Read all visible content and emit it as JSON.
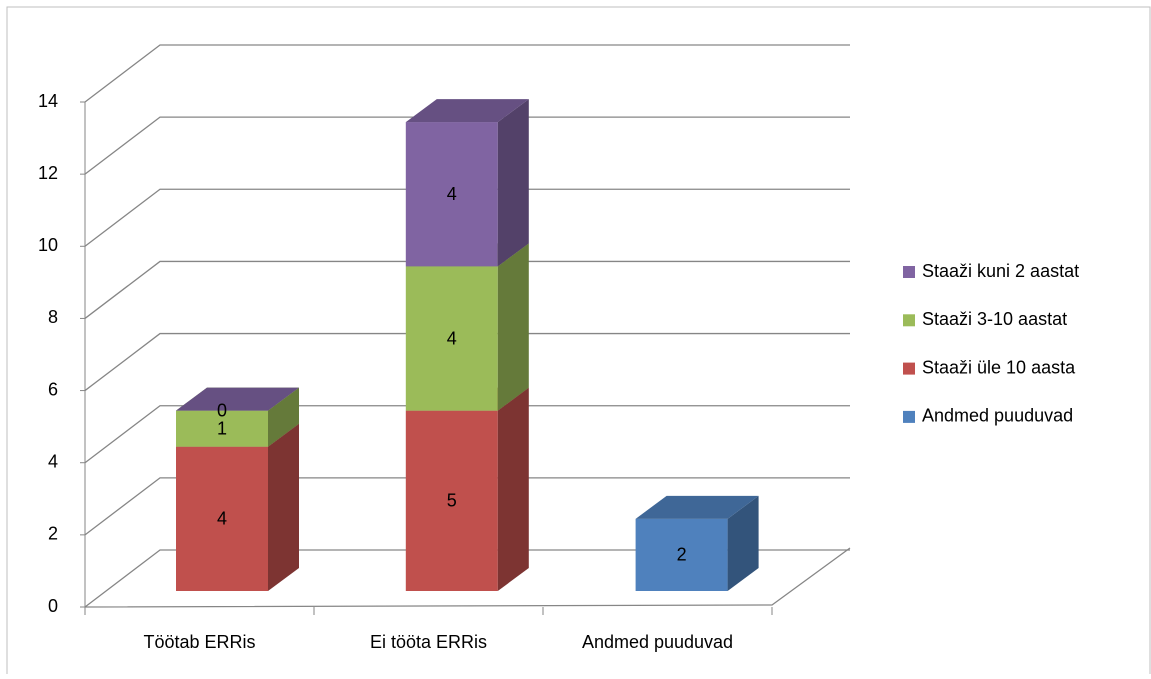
{
  "chart_data": {
    "type": "bar3d_stacked",
    "categories": [
      "Töötab ERRis",
      "Ei tööta ERRis",
      "Andmed puuduvad"
    ],
    "series": [
      {
        "name": "Andmed puuduvad",
        "color": "#4f81bd",
        "values": [
          null,
          null,
          2
        ]
      },
      {
        "name": "Staaži üle 10 aasta",
        "color": "#c0504d",
        "values": [
          4,
          5,
          null
        ]
      },
      {
        "name": "Staaži 3-10 aastat",
        "color": "#9bbb59",
        "values": [
          1,
          4,
          null
        ]
      },
      {
        "name": "Staaži kuni 2 aastat",
        "color": "#8064a2",
        "values": [
          0,
          4,
          null
        ]
      }
    ],
    "ylim": [
      0,
      14
    ],
    "yticks": [
      0,
      2,
      4,
      6,
      8,
      10,
      12,
      14
    ],
    "grid": true,
    "legend": "right"
  }
}
